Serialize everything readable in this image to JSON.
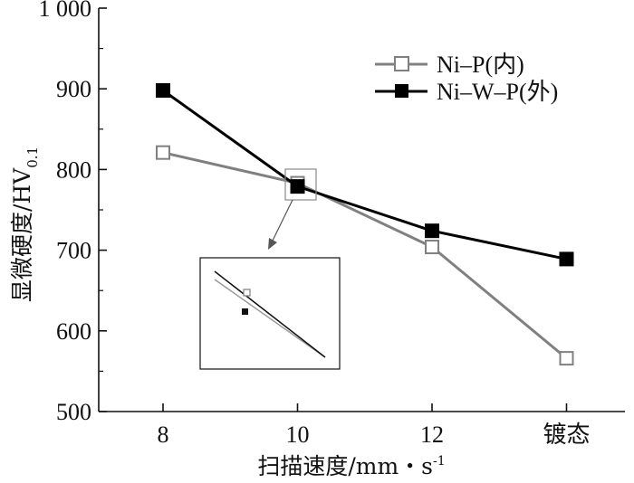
{
  "chart_data": {
    "type": "line",
    "categories": [
      "8",
      "10",
      "12",
      "镀态"
    ],
    "xlabel": "扫描速度/mm・s",
    "xlabel_sup": "-1",
    "ylabel": "显微硬度/HV",
    "ylabel_sub": "0.1",
    "ylim": [
      500,
      1000
    ],
    "yticks": [
      500,
      600,
      700,
      800,
      900,
      1000
    ],
    "ytick_labels": [
      "500",
      "600",
      "700",
      "800",
      "900",
      "1 000"
    ],
    "grid": false,
    "legend_position": "top-right",
    "series": [
      {
        "name": "Ni–P(内)",
        "values": [
          821,
          783,
          704,
          566
        ],
        "color": "#808080",
        "marker": "open-square"
      },
      {
        "name": "Ni–W–P(外)",
        "values": [
          898,
          779,
          724,
          689
        ],
        "color": "#000000",
        "marker": "filled-square"
      }
    ],
    "inset": {
      "note": "magnified view of intersection near x = 10"
    }
  }
}
